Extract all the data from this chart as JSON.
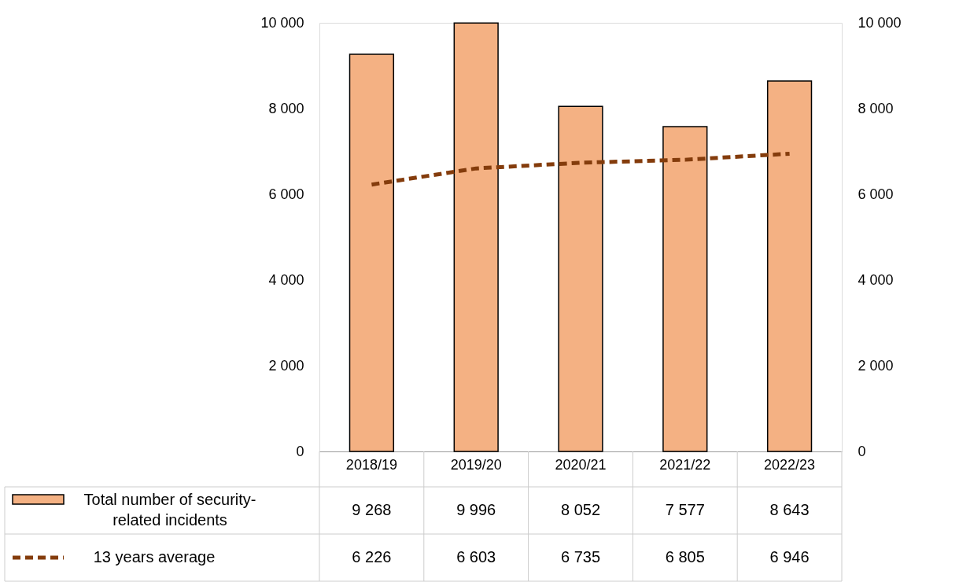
{
  "chart_data": {
    "type": "bar",
    "categories": [
      "2018/19",
      "2019/20",
      "2020/21",
      "2021/22",
      "2022/23"
    ],
    "series": [
      {
        "name": "Total number of security-related incidents",
        "color": "#f4b183",
        "values": [
          9268,
          9996,
          8052,
          7577,
          8643
        ]
      },
      {
        "name": "13 years average",
        "type": "line",
        "axis": "y2",
        "line_style": "dashed",
        "color": "#843c0c",
        "values": [
          6226,
          6603,
          6735,
          6805,
          6946
        ]
      }
    ],
    "ylim": [
      0,
      10000
    ],
    "yticks": [
      {
        "value": 0,
        "label": "0"
      },
      {
        "value": 2000,
        "label": "2 000"
      },
      {
        "value": 4000,
        "label": "4 000"
      },
      {
        "value": 6000,
        "label": "6 000"
      },
      {
        "value": 8000,
        "label": "8 000"
      },
      {
        "value": 10000,
        "label": "10 000"
      }
    ],
    "y2lim": [
      0,
      10000
    ],
    "y2ticks": [
      {
        "value": 0,
        "label": "0"
      },
      {
        "value": 2000,
        "label": "2 000"
      },
      {
        "value": 4000,
        "label": "4 000"
      },
      {
        "value": 6000,
        "label": "6 000"
      },
      {
        "value": 8000,
        "label": "8 000"
      },
      {
        "value": 10000,
        "label": "10 000"
      }
    ],
    "data_labels": true,
    "legend": "bottom",
    "grid": false
  }
}
